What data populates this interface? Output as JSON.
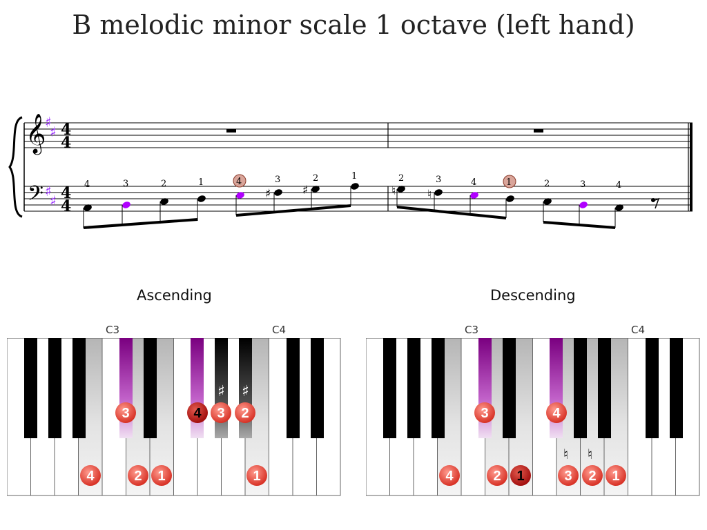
{
  "title": "B melodic minor scale 1 octave (left hand)",
  "score": {
    "time_signature": "4/4",
    "clefs": [
      "treble",
      "bass"
    ],
    "accidental_glyphs": {
      "sharp": "♯",
      "natural": "♮"
    },
    "key_signature": "F♯ C♯",
    "treble_rests": [
      "whole rest",
      "whole rest"
    ],
    "bar1_notes": [
      {
        "note": "B2",
        "finger": "4",
        "accidental": ""
      },
      {
        "note": "C♯3",
        "finger": "3",
        "accidental": ""
      },
      {
        "note": "D3",
        "finger": "2",
        "accidental": ""
      },
      {
        "note": "E3",
        "finger": "1",
        "accidental": ""
      },
      {
        "note": "F♯3",
        "finger": "4",
        "accidental": ""
      },
      {
        "note": "G♯3",
        "finger": "3",
        "accidental": "♯"
      },
      {
        "note": "A♯3",
        "finger": "2",
        "accidental": "♯"
      },
      {
        "note": "B3",
        "finger": "1",
        "accidental": ""
      }
    ],
    "bar2_notes": [
      {
        "note": "A3",
        "finger": "2",
        "accidental": "♮"
      },
      {
        "note": "G3",
        "finger": "3",
        "accidental": "♮"
      },
      {
        "note": "F♯3",
        "finger": "4",
        "accidental": ""
      },
      {
        "note": "E3",
        "finger": "1",
        "accidental": ""
      },
      {
        "note": "D3",
        "finger": "2",
        "accidental": ""
      },
      {
        "note": "C♯3",
        "finger": "3",
        "accidental": ""
      },
      {
        "note": "B2",
        "finger": "4",
        "accidental": ""
      }
    ],
    "bar2_rest": "eighth rest"
  },
  "ascending": {
    "label": "Ascending",
    "octave_labels": [
      "C3",
      "C4"
    ],
    "fingers": [
      "4",
      "3",
      "2",
      "1",
      "4",
      "3",
      "2",
      "1"
    ]
  },
  "descending": {
    "label": "Descending",
    "octave_labels": [
      "C3",
      "C4"
    ],
    "fingers": [
      "1",
      "2",
      "3",
      "4",
      "1",
      "2",
      "3",
      "4"
    ]
  },
  "colors": {
    "scale_key": "#e6e6e6",
    "purple": "#8b008b",
    "finger_red": "#e8453c",
    "finger_dark_red": "#c21010",
    "circled_finger_fill": "#d9a59a"
  }
}
